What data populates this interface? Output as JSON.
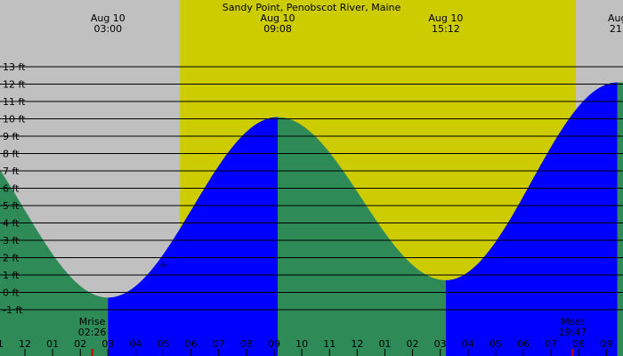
{
  "chart_data": {
    "type": "area",
    "title": "Sandy Point, Penobscot River, Maine",
    "xlabel": "",
    "ylabel": "",
    "x_unit": "hour",
    "xlim": [
      -0.9,
      21.6
    ],
    "ylim": [
      -2,
      13
    ],
    "y_ticks": [
      -1,
      0,
      1,
      2,
      3,
      4,
      5,
      6,
      7,
      8,
      9,
      10,
      11,
      12,
      13
    ],
    "y_tick_labels": [
      "-1 ft",
      "0 ft",
      "1 ft",
      "2 ft",
      "3 ft",
      "4 ft",
      "5 ft",
      "6 ft",
      "7 ft",
      "8 ft",
      "9 ft",
      "10 ft",
      "11 ft",
      "12 ft",
      "13 ft"
    ],
    "hour_ticks": [
      -1,
      0,
      1,
      2,
      3,
      4,
      5,
      6,
      7,
      8,
      9,
      10,
      11,
      12,
      13,
      14,
      15,
      16,
      17,
      18,
      19,
      20,
      21
    ],
    "hour_tick_labels": [
      "11",
      "12",
      "01",
      "02",
      "03",
      "04",
      "05",
      "06",
      "07",
      "08",
      "09",
      "10",
      "11",
      "12",
      "01",
      "02",
      "03",
      "04",
      "05",
      "06",
      "07",
      "08",
      "09"
    ],
    "top_labels": [
      {
        "hour": 3.0,
        "date": "Aug 10",
        "time": "03:00"
      },
      {
        "hour": 9.13,
        "date": "Aug 10",
        "time": "09:08"
      },
      {
        "hour": 15.2,
        "date": "Aug 10",
        "time": "15:12"
      },
      {
        "hour": 21.4,
        "date": "Aug",
        "time": "21:"
      }
    ],
    "extrema": [
      {
        "hour": 3.0,
        "height": -0.3,
        "kind": "low"
      },
      {
        "hour": 9.13,
        "height": 10.1,
        "kind": "high"
      },
      {
        "hour": 15.2,
        "height": 0.7,
        "kind": "low"
      },
      {
        "hour": 21.4,
        "height": 12.1,
        "kind": "high"
      }
    ],
    "start_height": 8.4,
    "daylight": {
      "start_hour": 5.6,
      "end_hour": 19.9
    },
    "moon": [
      {
        "label": "Mrise",
        "time": "02:26",
        "hour": 2.43
      },
      {
        "label": "Mset",
        "time": "19:47",
        "hour": 19.78
      }
    ],
    "plus_marker": {
      "hour": 5.0,
      "height": 1.6
    }
  },
  "colors": {
    "background": "#c0c0c0",
    "daylight": "#cccc00",
    "falling_tide": "#2e8b57",
    "rising_tide": "#0000ff",
    "grid": "#000000",
    "moon_tick": "#cc0000"
  }
}
